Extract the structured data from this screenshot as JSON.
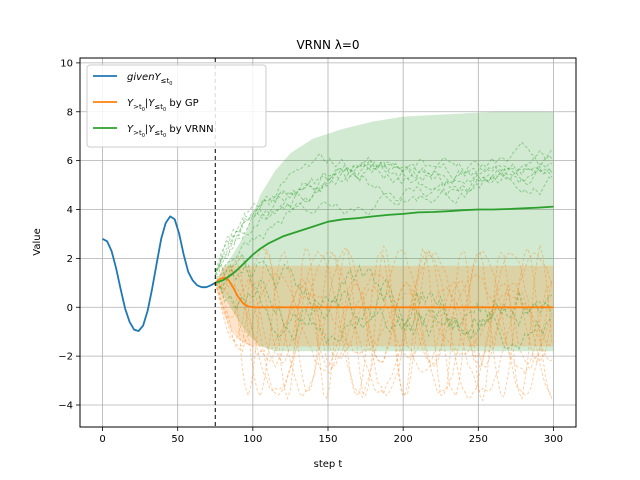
{
  "chart_data": {
    "type": "line",
    "title": "VRNN λ=0",
    "xlabel": "step t",
    "ylabel": "Value",
    "xlim": [
      -15,
      315
    ],
    "ylim": [
      -4.9,
      10.2
    ],
    "xticks": [
      0,
      50,
      100,
      150,
      200,
      250,
      300
    ],
    "yticks": [
      -4,
      -2,
      0,
      2,
      4,
      6,
      8,
      10
    ],
    "grid": true,
    "legend_position": "upper-left",
    "t0": 75,
    "series": [
      {
        "name": "given Y≤t0",
        "color": "#1f77b4",
        "x": [
          0,
          3,
          6,
          9,
          12,
          15,
          18,
          21,
          24,
          27,
          30,
          33,
          36,
          39,
          42,
          45,
          48,
          51,
          54,
          57,
          60,
          63,
          66,
          69,
          72,
          75
        ],
        "y": [
          2.8,
          2.7,
          2.3,
          1.6,
          0.75,
          -0.05,
          -0.6,
          -0.92,
          -0.97,
          -0.75,
          -0.15,
          0.75,
          1.8,
          2.8,
          3.45,
          3.72,
          3.6,
          3.0,
          2.15,
          1.45,
          1.1,
          0.9,
          0.82,
          0.82,
          0.9,
          1.0
        ]
      },
      {
        "name": "Y>t0|Y≤t0 by GP",
        "color": "#ff7f0e",
        "x": [
          75,
          78,
          81,
          84,
          87,
          90,
          93,
          96,
          100,
          110,
          130,
          160,
          200,
          250,
          300
        ],
        "y": [
          1.0,
          1.15,
          1.22,
          1.1,
          0.8,
          0.45,
          0.2,
          0.05,
          0.0,
          0.0,
          0.0,
          0.0,
          0.0,
          0.0,
          0.0
        ]
      },
      {
        "name": "Y>t0|Y≤t0 by VRNN",
        "color": "#2ca02c",
        "x": [
          75,
          80,
          85,
          90,
          95,
          100,
          105,
          110,
          115,
          120,
          130,
          140,
          150,
          160,
          170,
          180,
          190,
          200,
          210,
          220,
          230,
          240,
          250,
          260,
          270,
          280,
          290,
          300
        ],
        "y": [
          1.0,
          1.1,
          1.3,
          1.55,
          1.85,
          2.15,
          2.4,
          2.6,
          2.75,
          2.9,
          3.1,
          3.3,
          3.5,
          3.6,
          3.65,
          3.72,
          3.78,
          3.82,
          3.88,
          3.9,
          3.93,
          3.97,
          4.0,
          4.0,
          4.02,
          4.05,
          4.08,
          4.12
        ]
      }
    ],
    "gp_band": {
      "color": "#ff7f0e",
      "x": [
        75,
        80,
        85,
        90,
        95,
        100,
        300
      ],
      "lower": [
        1.0,
        -0.2,
        -0.9,
        -1.3,
        -1.5,
        -1.6,
        -1.6
      ],
      "upper": [
        1.0,
        1.7,
        1.7,
        1.7,
        1.7,
        1.7,
        1.7
      ]
    },
    "vrnn_band": {
      "color": "#2ca02c",
      "x": [
        75,
        85,
        95,
        105,
        115,
        125,
        140,
        160,
        180,
        200,
        230,
        260,
        300
      ],
      "lower": [
        1.0,
        0.0,
        -1.0,
        -1.6,
        -1.8,
        -1.8,
        -1.8,
        -1.8,
        -1.8,
        -1.8,
        -1.8,
        -1.8,
        -1.8
      ],
      "upper": [
        1.0,
        2.0,
        3.0,
        4.6,
        5.6,
        6.3,
        6.9,
        7.3,
        7.6,
        7.8,
        7.9,
        8.0,
        8.0
      ]
    }
  }
}
